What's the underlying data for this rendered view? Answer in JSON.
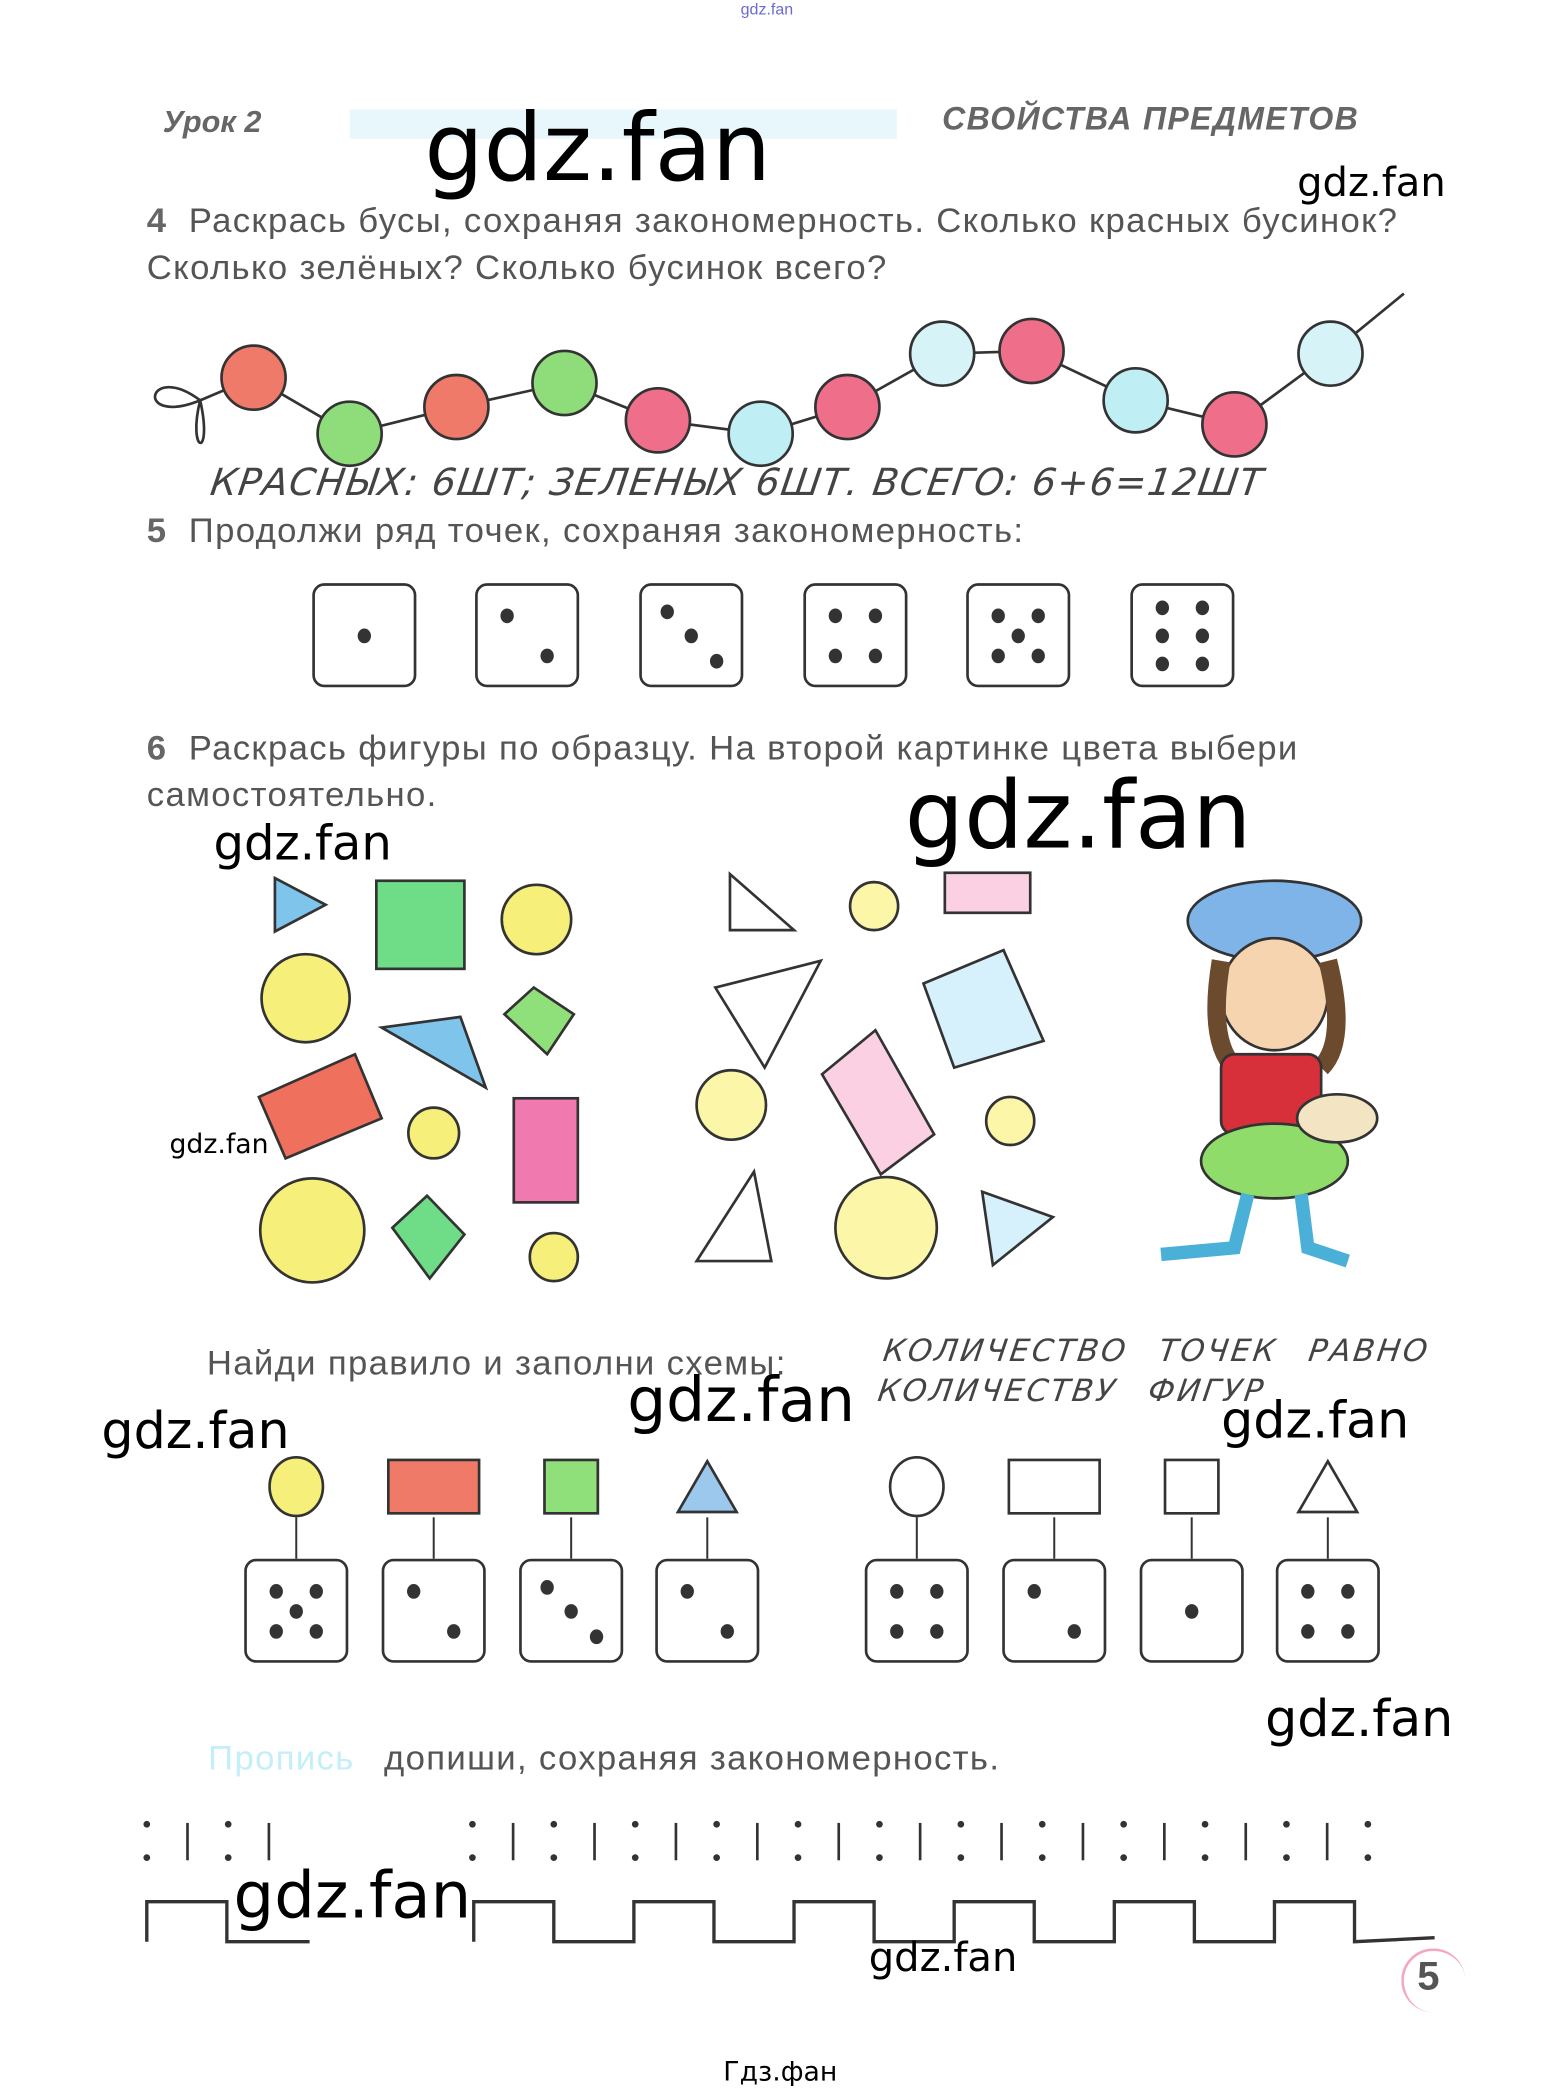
{
  "watermarks": {
    "top_small": "gdz.fan",
    "w1": "gdz.fan",
    "w2": "gdz.fan",
    "w3": "gdz.fan",
    "w4": "gdz.fan",
    "w5": "gdz.fan",
    "w6": "gdz.fan",
    "w7": "gdz.fan",
    "w8": "gdz.fan",
    "w9": "gdz.fan",
    "w10": "gdz.fan",
    "w11": "gdz.fan",
    "footer": "Гдз.фан"
  },
  "header": {
    "lesson": "Урок 2",
    "topic": "СВОЙСТВА ПРЕДМЕТОВ"
  },
  "task4": {
    "number": "4",
    "text": "Раскрась бусы, сохраняя закономерность. Сколько красных бусинок? Сколько зелёных? Сколько бусинок всего?",
    "bead_colors": [
      "#ef7a6a",
      "#8fdc7a",
      "#ef7a6a",
      "#8fdc7a",
      "#ef6f8a",
      "#bfeef5",
      "#ef6f8a",
      "#d6f3f8",
      "#ef6f8a",
      "#bfeef5",
      "#ef6f8a",
      "#d6f3f8"
    ],
    "answer": "КРАСНЫХ: 6ШТ; ЗЕЛЕНЫХ 6ШТ. ВСЕГО: 6+6=12ШТ"
  },
  "task5": {
    "number": "5",
    "text": "Продолжи ряд точек, сохраняя закономерность:",
    "dice": [
      1,
      2,
      3,
      4,
      5,
      6
    ]
  },
  "task6": {
    "number": "6",
    "text": "Раскрась фигуры по образцу. На второй картинке цвета выбери самостоятельно.",
    "colors": {
      "yellow": "#f6f07a",
      "green": "#6fdc88",
      "red": "#f0705e",
      "pink": "#f07ab0",
      "blue": "#7fc4ea"
    }
  },
  "schemes": {
    "text": "Найди правило и заполни схемы:",
    "answer_line1": "КОЛИЧЕСТВО ТОЧЕК РАВНО",
    "answer_line2": "КОЛИЧЕСТВУ ФИГУР",
    "left": [
      {
        "shape": "circle",
        "color": "#f6f07a",
        "dots": 5
      },
      {
        "shape": "rect",
        "color": "#f07a68",
        "dots": 2
      },
      {
        "shape": "square",
        "color": "#8fe07a",
        "dots": 3
      },
      {
        "shape": "triangle",
        "color": "#9cc8ee",
        "dots": 2
      }
    ],
    "right": [
      {
        "shape": "circle",
        "color": "#ffffff",
        "dots": 4
      },
      {
        "shape": "rect",
        "color": "#ffffff",
        "dots": 2
      },
      {
        "shape": "square",
        "color": "#ffffff",
        "dots": 1
      },
      {
        "shape": "triangle",
        "color": "#ffffff",
        "dots": 4
      }
    ]
  },
  "copybook": {
    "label": "Пропись",
    "text": "допиши, сохраняя закономерность."
  },
  "page_number": "5"
}
